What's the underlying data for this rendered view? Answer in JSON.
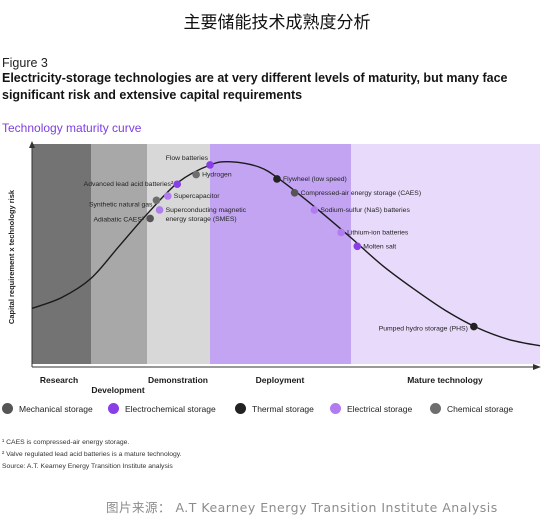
{
  "page_heading": "主要储能技术成熟度分析",
  "figure_label": "Figure 3",
  "figure_title": "Electricity-storage technologies are at very different levels of maturity, but many face significant risk and extensive capital requirements",
  "chart_subtitle": "Technology maturity curve",
  "colors": {
    "accent": "#7e3fe0",
    "mechanical": "#555555",
    "electrochemical": "#8a3ee6",
    "thermal": "#222222",
    "electrical": "#b07cf0",
    "chemical": "#6e6e6e",
    "stage_research": "#737373",
    "stage_development": "#a8a8a8",
    "stage_demonstration": "#d8d8d8",
    "stage_deployment": "#c3a4f2",
    "stage_mature": "#e8dafa",
    "curve": "#1a1a1a"
  },
  "chart_data": {
    "type": "scatter",
    "ylabel": "Capital requirement x technology risk",
    "stages": [
      {
        "key": "research",
        "label": "Research",
        "x_start": 0,
        "x_end": 1
      },
      {
        "key": "development",
        "label": "Development",
        "x_start": 1,
        "x_end": 2
      },
      {
        "key": "demonstration",
        "label": "Demonstration",
        "x_start": 2,
        "x_end": 3
      },
      {
        "key": "deployment",
        "label": "Deployment",
        "x_start": 3,
        "x_end": 5
      },
      {
        "key": "mature",
        "label": "Mature technology",
        "x_start": 5,
        "x_end": 8
      }
    ],
    "x_range": [
      0,
      8
    ],
    "y_range": [
      0,
      1
    ],
    "curve": [
      [
        0.0,
        0.26
      ],
      [
        0.5,
        0.31
      ],
      [
        1.0,
        0.4
      ],
      [
        1.5,
        0.55
      ],
      [
        2.0,
        0.7
      ],
      [
        2.5,
        0.85
      ],
      [
        3.0,
        0.93
      ],
      [
        3.3,
        0.945
      ],
      [
        3.7,
        0.92
      ],
      [
        4.0,
        0.86
      ],
      [
        4.5,
        0.73
      ],
      [
        5.0,
        0.59
      ],
      [
        5.5,
        0.46
      ],
      [
        6.0,
        0.35
      ],
      [
        6.5,
        0.25
      ],
      [
        7.0,
        0.17
      ],
      [
        7.5,
        0.115
      ],
      [
        8.0,
        0.085
      ]
    ],
    "points": [
      {
        "label": "Flow batteries",
        "category": "electrochemical",
        "x": 3.0,
        "y": 0.93,
        "anchor": "end"
      },
      {
        "label": "Hydrogen",
        "category": "chemical",
        "x": 2.78,
        "y": 0.885,
        "anchor": "start"
      },
      {
        "label": "Advanced lead acid batteries²",
        "category": "electrochemical",
        "x": 2.48,
        "y": 0.84,
        "anchor": "end"
      },
      {
        "label": "Supercapacitor",
        "category": "electrical",
        "x": 2.33,
        "y": 0.785,
        "anchor": "start"
      },
      {
        "label": "Synthetic natural gas",
        "category": "chemical",
        "x": 2.15,
        "y": 0.765,
        "anchor": "end"
      },
      {
        "label": "Superconducting magnetic energy storage (SMES)",
        "category": "electrical",
        "x": 2.2,
        "y": 0.72,
        "anchor": "start"
      },
      {
        "label": "Adiabatic CAES¹",
        "category": "mechanical",
        "x": 2.05,
        "y": 0.68,
        "anchor": "end"
      },
      {
        "label": "Flywheel (low speed)",
        "category": "thermal",
        "x": 3.95,
        "y": 0.865,
        "anchor": "start"
      },
      {
        "label": "Compressed-air energy storage (CAES)",
        "category": "mechanical",
        "x": 4.2,
        "y": 0.8,
        "anchor": "start"
      },
      {
        "label": "Sodium-sulfur (NaS) batteries",
        "category": "electrical",
        "x": 4.48,
        "y": 0.72,
        "anchor": "start"
      },
      {
        "label": "Lithium-ion batteries",
        "category": "electrical",
        "x": 4.86,
        "y": 0.615,
        "anchor": "start"
      },
      {
        "label": "Molten salt",
        "category": "electrochemical",
        "x": 5.1,
        "y": 0.55,
        "anchor": "start"
      },
      {
        "label": "Pumped hydro storage (PHS)",
        "category": "thermal",
        "x": 6.95,
        "y": 0.175,
        "anchor": "end"
      }
    ]
  },
  "legend": [
    {
      "key": "mechanical",
      "label": "Mechanical storage"
    },
    {
      "key": "electrochemical",
      "label": "Electrochemical storage"
    },
    {
      "key": "thermal",
      "label": "Thermal storage"
    },
    {
      "key": "electrical",
      "label": "Electrical storage"
    },
    {
      "key": "chemical",
      "label": "Chemical storage"
    }
  ],
  "notes": [
    "¹ CAES is compressed-air energy storage.",
    "² Valve regulated lead acid batteries is a mature technology.",
    "Source: A.T. Kearney Energy Transition Institute analysis"
  ],
  "source_credit": "图片来源： A.T Kearney Energy Transition Institute Analysis"
}
